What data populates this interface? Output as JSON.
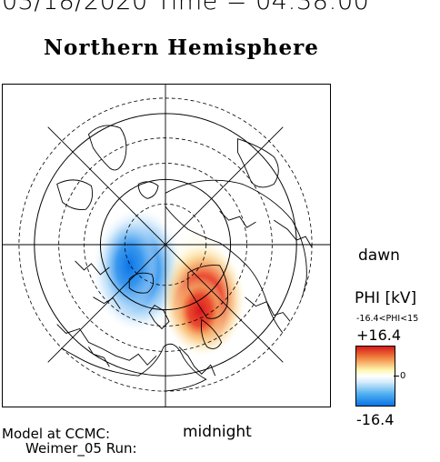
{
  "header": {
    "timestamp_text": "03/18/2020 Time = 04:38:00"
  },
  "map": {
    "title": "Northern Hemisphere",
    "projection": "polar-stereographic-north",
    "overlay": "electric-potential",
    "labels": {
      "dawn": "dawn",
      "midnight": "midnight"
    }
  },
  "colorbar": {
    "title": "PHI [kV]",
    "range_text": "-16.4<PHI<15",
    "max_label": "+16.4",
    "zero_label": "0",
    "min_label": "-16.4",
    "colors": {
      "max": "#d7191c",
      "mid": "#ffffff",
      "min": "#0a74e8"
    }
  },
  "footer": {
    "model_line1": "Model at CCMC:",
    "model_line2": "Weimer_05 Run:"
  }
}
